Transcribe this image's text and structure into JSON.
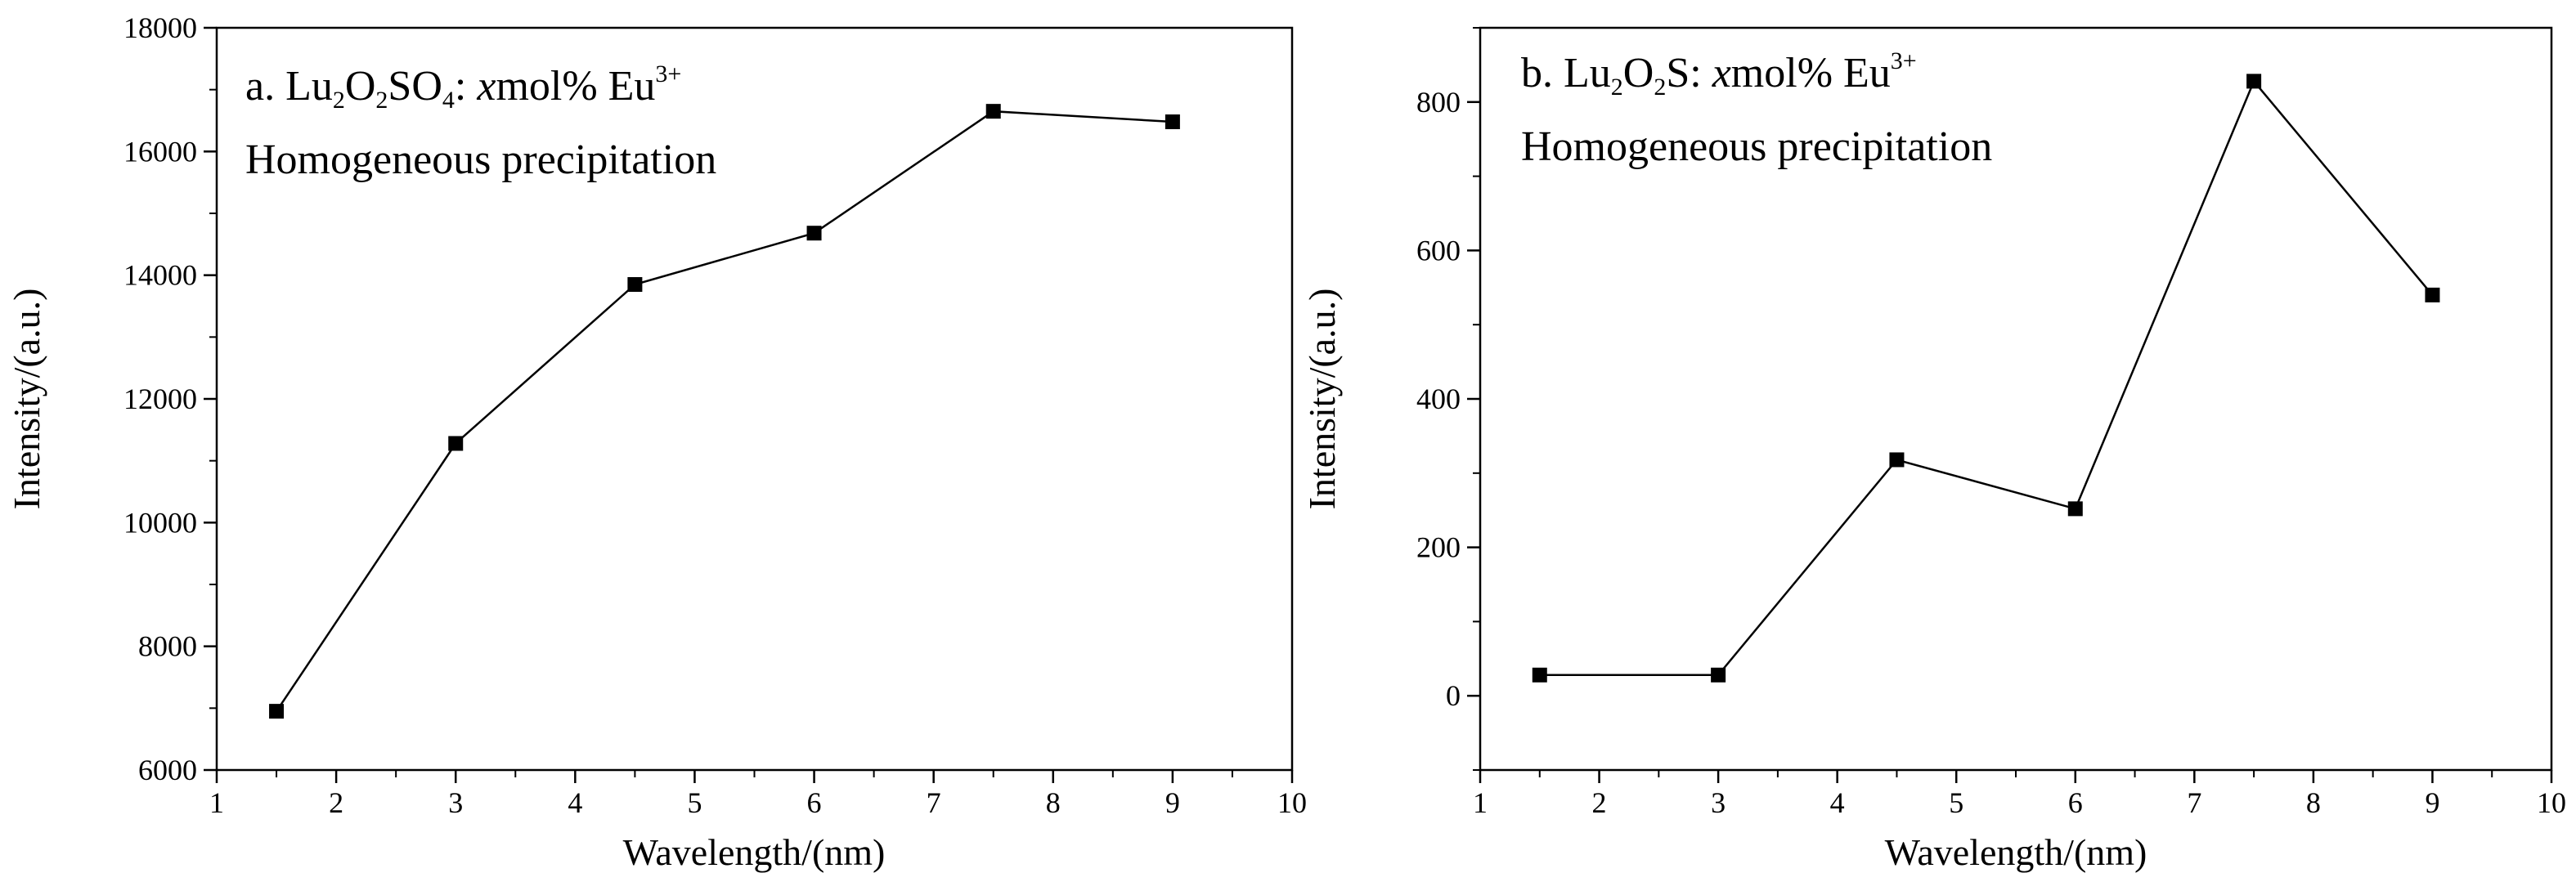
{
  "chart_data": [
    {
      "type": "line",
      "xlabel": "Wavelength/(nm)",
      "ylabel": "Intensity/(a.u.)",
      "xlim": [
        1,
        10
      ],
      "ylim": [
        6000,
        18000
      ],
      "x_ticks": [
        1,
        2,
        3,
        4,
        5,
        6,
        7,
        8,
        9,
        10
      ],
      "y_ticks": [
        6000,
        8000,
        10000,
        12000,
        14000,
        16000,
        18000
      ],
      "grid": false,
      "marker": "square",
      "color": "#000000",
      "annotation": {
        "prefix": "a. Lu",
        "sub1": "2",
        "mid1": "O",
        "sub2": "2",
        "mid2": "SO",
        "sub3": "4",
        "mid3": ": ",
        "italic": "x",
        "mid4": "mol% Eu",
        "sup": "3+",
        "line2": "Homogeneous precipitation"
      },
      "series": [
        {
          "x": [
            1.5,
            3,
            4.5,
            6,
            7.5,
            9
          ],
          "values": [
            6950,
            11280,
            13850,
            14680,
            16650,
            16480
          ]
        }
      ]
    },
    {
      "type": "line",
      "xlabel": "Wavelength/(nm)",
      "ylabel": "Intensity/(a.u.)",
      "xlim": [
        1,
        10
      ],
      "ylim": [
        -100,
        900
      ],
      "x_ticks": [
        1,
        2,
        3,
        4,
        5,
        6,
        7,
        8,
        9,
        10
      ],
      "y_ticks": [
        0,
        200,
        400,
        600,
        800
      ],
      "grid": false,
      "marker": "square",
      "color": "#000000",
      "annotation": {
        "prefix": "b. Lu",
        "sub1": "2",
        "mid1": "O",
        "sub2": "2",
        "mid2": "S: ",
        "italic": "x",
        "mid3": "mol% Eu",
        "sup": "3+",
        "line2": "Homogeneous precipitation"
      },
      "series": [
        {
          "x": [
            1.5,
            3,
            4.5,
            6,
            7.5,
            9
          ],
          "values": [
            28,
            28,
            318,
            252,
            828,
            540
          ]
        }
      ]
    }
  ]
}
